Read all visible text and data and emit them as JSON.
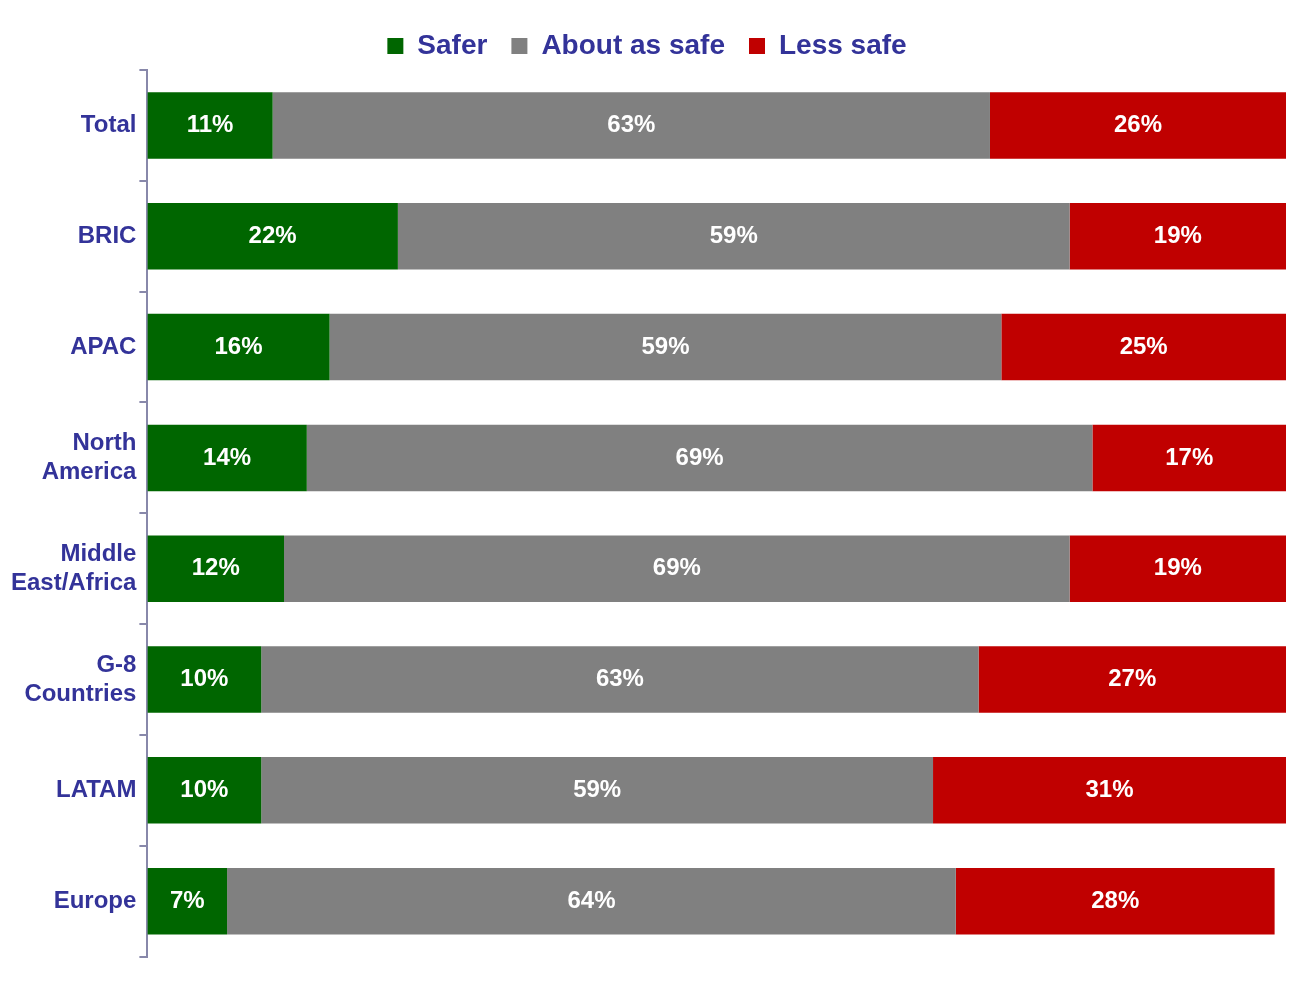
{
  "chart_data": {
    "type": "bar",
    "orientation": "horizontal",
    "stacked": true,
    "legend": "top",
    "grid": false,
    "categories": [
      "Total",
      "BRIC",
      "APAC",
      "North America",
      "Middle East/Africa",
      "G-8 Countries",
      "LATAM",
      "Europe"
    ],
    "series": [
      {
        "name": "Safer",
        "color": "#006600",
        "values": [
          11,
          22,
          16,
          14,
          12,
          10,
          10,
          7
        ],
        "value_labels": [
          "11%",
          "22%",
          "16%",
          "14%",
          "12%",
          "10%",
          "10%",
          "7%"
        ]
      },
      {
        "name": "About as safe",
        "color": "#808080",
        "values": [
          63,
          59,
          59,
          69,
          69,
          63,
          59,
          64
        ],
        "value_labels": [
          "63%",
          "59%",
          "59%",
          "69%",
          "69%",
          "63%",
          "59%",
          "64%"
        ]
      },
      {
        "name": "Less safe",
        "color": "#c00000",
        "values": [
          26,
          19,
          25,
          17,
          19,
          27,
          31,
          28
        ],
        "value_labels": [
          "26%",
          "19%",
          "25%",
          "17%",
          "19%",
          "27%",
          "31%",
          "28%"
        ]
      }
    ]
  }
}
